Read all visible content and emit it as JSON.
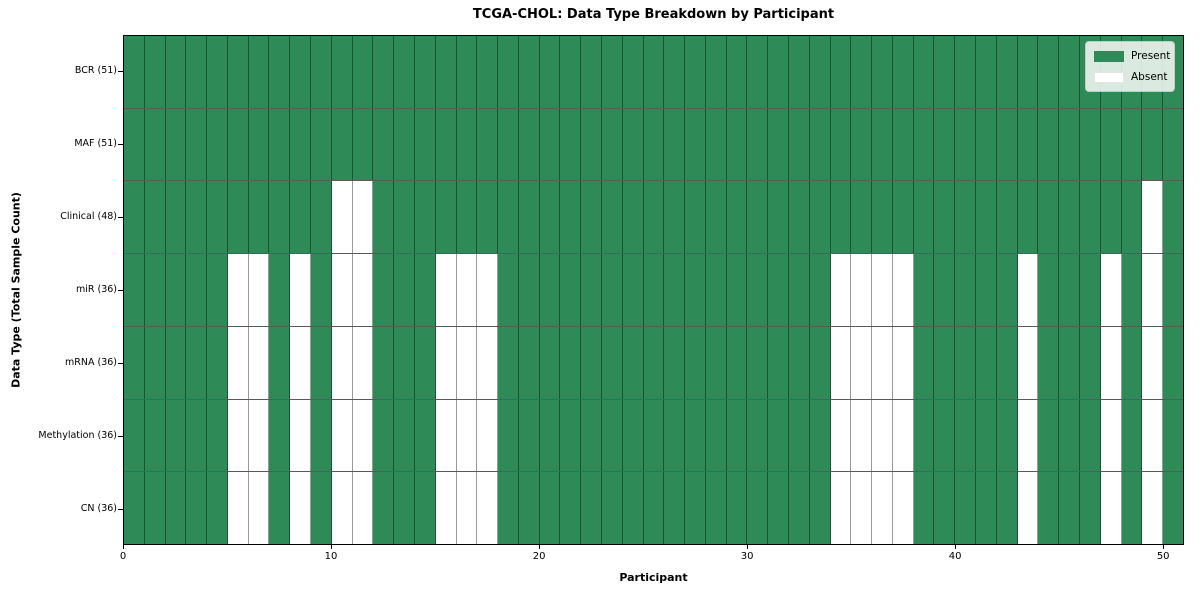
{
  "title": "TCGA-CHOL: Data Type Breakdown by Participant",
  "chart_data": {
    "type": "heatmap",
    "title": "TCGA-CHOL: Data Type Breakdown by Participant",
    "xlabel": "Participant",
    "ylabel": "Data Type (Total Sample Count)",
    "n_participants": 51,
    "x_range": [
      0,
      51
    ],
    "x_ticks": [
      0,
      10,
      20,
      30,
      40,
      50
    ],
    "grid": true,
    "legend_position": "upper right",
    "colors": {
      "present": "#2E8B57",
      "absent": "#FFFFFF"
    },
    "legend": [
      {
        "label": "Present",
        "color": "#2E8B57"
      },
      {
        "label": "Absent",
        "color": "#FFFFFF"
      }
    ],
    "rows": [
      {
        "label": "BCR (51)",
        "data_type": "BCR",
        "total_samples": 51,
        "absent_participants": []
      },
      {
        "label": "MAF (51)",
        "data_type": "MAF",
        "total_samples": 51,
        "absent_participants": []
      },
      {
        "label": "Clinical (48)",
        "data_type": "Clinical",
        "total_samples": 48,
        "absent_participants": [
          10,
          11,
          49
        ]
      },
      {
        "label": "miR (36)",
        "data_type": "miR",
        "total_samples": 36,
        "absent_participants": [
          5,
          6,
          8,
          10,
          11,
          15,
          16,
          17,
          34,
          35,
          36,
          37,
          43,
          47,
          49
        ]
      },
      {
        "label": "mRNA (36)",
        "data_type": "mRNA",
        "total_samples": 36,
        "absent_participants": [
          5,
          6,
          8,
          10,
          11,
          15,
          16,
          17,
          34,
          35,
          36,
          37,
          43,
          47,
          49
        ]
      },
      {
        "label": "Methylation (36)",
        "data_type": "Methylation",
        "total_samples": 36,
        "absent_participants": [
          5,
          6,
          8,
          10,
          11,
          15,
          16,
          17,
          34,
          35,
          36,
          37,
          43,
          47,
          49
        ]
      },
      {
        "label": "CN (36)",
        "data_type": "CN",
        "total_samples": 36,
        "absent_participants": [
          5,
          6,
          8,
          10,
          11,
          15,
          16,
          17,
          34,
          35,
          36,
          37,
          43,
          47,
          49
        ]
      }
    ]
  }
}
